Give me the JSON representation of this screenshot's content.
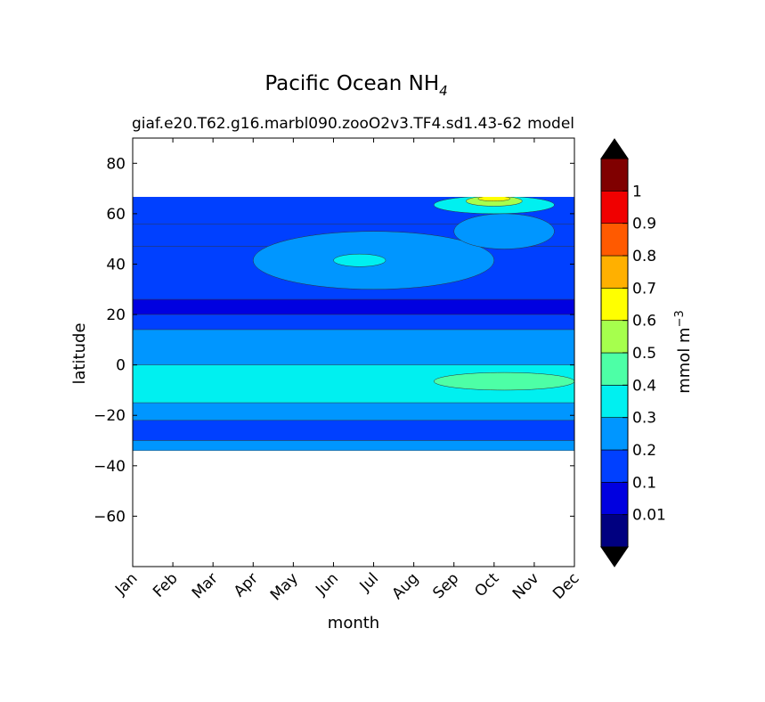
{
  "chart_data": {
    "type": "heatmap",
    "plot_type": "filled-contour",
    "title_main": "Pacific Ocean NH",
    "title_sub": "4",
    "subtitle_left": "giaf.e20.T62.g16.marbl090.zooO2v3.TF4.sd1.43-62",
    "subtitle_right": "model",
    "xlabel": "month",
    "ylabel": "latitude",
    "x_categories": [
      "Jan",
      "Feb",
      "Mar",
      "Apr",
      "May",
      "Jun",
      "Jul",
      "Aug",
      "Sep",
      "Oct",
      "Nov",
      "Dec"
    ],
    "xlim": [
      0,
      11
    ],
    "ylim": [
      -80,
      90
    ],
    "yticks": [
      80,
      60,
      40,
      20,
      0,
      -20,
      -40,
      -60
    ],
    "ytick_labels": [
      "80",
      "60",
      "40",
      "20",
      "0",
      "−20",
      "−40",
      "−60"
    ],
    "data_lat_range": [
      -34,
      67
    ],
    "colorbar": {
      "label": "mmol m",
      "label_exp": "−3",
      "levels": [
        0,
        0.01,
        0.1,
        0.2,
        0.3,
        0.4,
        0.5,
        0.6,
        0.7,
        0.8,
        0.9,
        1,
        1.1
      ],
      "tick_labels": [
        "0.01",
        "0.1",
        "0.2",
        "0.3",
        "0.4",
        "0.5",
        "0.6",
        "0.7",
        "0.8",
        "0.9",
        "1"
      ],
      "tick_values": [
        0.01,
        0.1,
        0.2,
        0.3,
        0.4,
        0.5,
        0.6,
        0.7,
        0.8,
        0.9,
        1
      ],
      "colors": [
        "#000080",
        "#0000e0",
        "#0040ff",
        "#0096ff",
        "#00f0f0",
        "#4dffa6",
        "#a6ff4d",
        "#ffff00",
        "#ffb000",
        "#ff5a00",
        "#f00000",
        "#800000"
      ],
      "extend_color": "#000000"
    },
    "bands": [
      {
        "lat": [
          56,
          67
        ],
        "level": 0.1
      },
      {
        "lat": [
          47,
          56
        ],
        "level": 0.1
      },
      {
        "lat": [
          26,
          47
        ],
        "level": 0.1
      },
      {
        "lat": [
          20,
          26
        ],
        "level": 0.01
      },
      {
        "lat": [
          14,
          20
        ],
        "level": 0.1
      },
      {
        "lat": [
          0,
          14
        ],
        "level": 0.2
      },
      {
        "lat": [
          -15,
          0
        ],
        "level": 0.3
      },
      {
        "lat": [
          -22,
          -15
        ],
        "level": 0.2
      },
      {
        "lat": [
          -30,
          -22
        ],
        "level": 0.1
      },
      {
        "lat": [
          -34,
          -30
        ],
        "level": 0.2
      }
    ],
    "features": [
      {
        "desc": "mid-latitude lobe",
        "level": 0.2,
        "months": [
          3,
          9
        ],
        "lat": [
          30,
          53
        ]
      },
      {
        "desc": "subtropical cyan patch",
        "level": 0.3,
        "months": [
          5,
          6.3
        ],
        "lat": [
          39,
          44
        ]
      },
      {
        "desc": "eastern lobe",
        "level": 0.2,
        "months": [
          8,
          10.5
        ],
        "lat": [
          46,
          60
        ]
      },
      {
        "desc": "autumn high-latitude bloom",
        "level": 0.3,
        "months": [
          7.5,
          10.5
        ],
        "lat": [
          60,
          67
        ]
      },
      {
        "desc": "bloom core",
        "level": 0.5,
        "months": [
          8.3,
          9.7
        ],
        "lat": [
          63,
          67
        ]
      },
      {
        "desc": "bloom peak",
        "level": 0.6,
        "months": [
          8.6,
          9.4
        ],
        "lat": [
          65,
          67
        ]
      },
      {
        "desc": "equatorial green patch",
        "level": 0.4,
        "months": [
          7.5,
          11
        ],
        "lat": [
          -10,
          -3
        ]
      }
    ]
  }
}
